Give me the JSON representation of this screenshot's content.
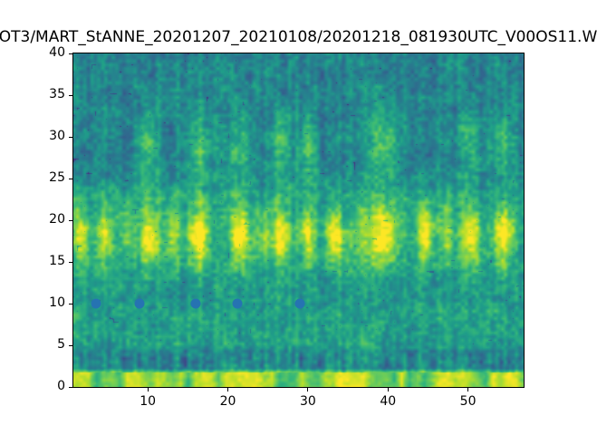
{
  "title": "OT3/MART_StANNE_20201207_20210108/20201218_081930UTC_V00OS11.W",
  "colors": {
    "background": "#ffffff",
    "axes_frame": "#000000",
    "tick_text": "#000000",
    "scatter_marker": "#2673b2",
    "colormap_low": "#440154",
    "colormap_mid": "#21918c",
    "colormap_high": "#fde725"
  },
  "chart_data": {
    "type": "heatmap",
    "title": "OT3/MART_StANNE_20201207_20210108/20201218_081930UTC_V00OS11.W",
    "xlabel": "",
    "ylabel": "",
    "xlim": [
      0.7,
      56.95
    ],
    "ylim": [
      0,
      40
    ],
    "x_ticks": [
      10,
      20,
      30,
      40,
      50
    ],
    "y_ticks": [
      0,
      5,
      10,
      15,
      20,
      25,
      30,
      35,
      40
    ],
    "grid": false,
    "legend": "none",
    "colormap": "viridis",
    "heatmap_description": {
      "summary": "Noisy spectrogram-like field, mostly teal-green (viridis mid values) with vertical striations",
      "bright_bottom_band_y": [
        0,
        1.7
      ],
      "dark_striped_band_y": [
        1.8,
        4.5
      ],
      "green_band_y": [
        4.5,
        9.5
      ],
      "bright_blob_band_y": [
        13,
        24
      ],
      "bright_column_centers_x": [
        1.7,
        4.5,
        7.3,
        10.2,
        13.0,
        16.4,
        21.5,
        24.3,
        26.6,
        30.0,
        33.4,
        36.3,
        39.5,
        44.7,
        47.3,
        50.4,
        54.4
      ],
      "upper_region_y": [
        27,
        40
      ],
      "upper_region_character": "teal with faint light-green columns and scattered dark indigo specks"
    },
    "scatter_series": {
      "name": "event-markers",
      "marker": "circle",
      "color": "#2673b2",
      "x": [
        3.5,
        9.0,
        16.0,
        21.2,
        29.0
      ],
      "y": [
        10,
        10,
        10,
        10,
        10
      ]
    }
  }
}
